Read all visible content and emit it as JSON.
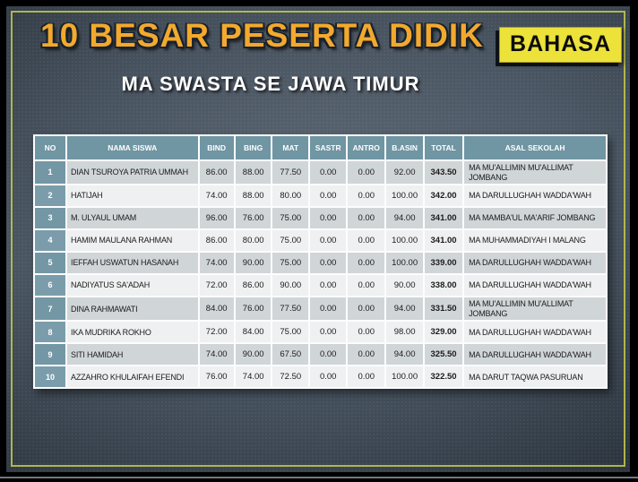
{
  "slide": {
    "title": "10 BESAR PESERTA DIDIK",
    "badge": "BAHASA",
    "subtitle": "MA SWASTA SE JAWA TIMUR"
  },
  "colors": {
    "title_gold": "#f2a92d",
    "badge_yellow": "#ece23a",
    "header_teal": "#7095a3",
    "rank_teal": "#7b9dab",
    "band_gray": "#d0d5d8",
    "band_light": "#eef0f1",
    "border_accent": "#bcc24e"
  },
  "table": {
    "columns": [
      "NO",
      "NAMA SISWA",
      "BIND",
      "BING",
      "MAT",
      "SASTR",
      "ANTRO",
      "B.ASIN",
      "TOTAL",
      "ASAL SEKOLAH"
    ],
    "rows": [
      {
        "no": "1",
        "nama": "DIAN TSUROYA PATRIA UMMAH",
        "bind": "86.00",
        "bing": "88.00",
        "mat": "77.50",
        "sastr": "0.00",
        "antro": "0.00",
        "basin": "92.00",
        "total": "343.50",
        "asal": "MA MU'ALLIMIN MU'ALLIMAT JOMBANG"
      },
      {
        "no": "2",
        "nama": "HATIJAH",
        "bind": "74.00",
        "bing": "88.00",
        "mat": "80.00",
        "sastr": "0.00",
        "antro": "0.00",
        "basin": "100.00",
        "total": "342.00",
        "asal": "MA DARULLUGHAH WADDA'WAH"
      },
      {
        "no": "3",
        "nama": "M. ULYAUL UMAM",
        "bind": "96.00",
        "bing": "76.00",
        "mat": "75.00",
        "sastr": "0.00",
        "antro": "0.00",
        "basin": "94.00",
        "total": "341.00",
        "asal": "MA MAMBA'UL MA'ARIF JOMBANG"
      },
      {
        "no": "4",
        "nama": "HAMIM MAULANA RAHMAN",
        "bind": "86.00",
        "bing": "80.00",
        "mat": "75.00",
        "sastr": "0.00",
        "antro": "0.00",
        "basin": "100.00",
        "total": "341.00",
        "asal": "MA MUHAMMADIYAH I MALANG"
      },
      {
        "no": "5",
        "nama": "IEFFAH USWATUN HASANAH",
        "bind": "74.00",
        "bing": "90.00",
        "mat": "75.00",
        "sastr": "0.00",
        "antro": "0.00",
        "basin": "100.00",
        "total": "339.00",
        "asal": "MA DARULLUGHAH WADDA'WAH"
      },
      {
        "no": "6",
        "nama": "NADIYATUS SA'ADAH",
        "bind": "72.00",
        "bing": "86.00",
        "mat": "90.00",
        "sastr": "0.00",
        "antro": "0.00",
        "basin": "90.00",
        "total": "338.00",
        "asal": "MA DARULLUGHAH WADDA'WAH"
      },
      {
        "no": "7",
        "nama": "DINA RAHMAWATI",
        "bind": "84.00",
        "bing": "76.00",
        "mat": "77.50",
        "sastr": "0.00",
        "antro": "0.00",
        "basin": "94.00",
        "total": "331.50",
        "asal": "MA MU'ALLIMIN MU'ALLIMAT JOMBANG"
      },
      {
        "no": "8",
        "nama": "IKA MUDRIKA ROKHO",
        "bind": "72.00",
        "bing": "84.00",
        "mat": "75.00",
        "sastr": "0.00",
        "antro": "0.00",
        "basin": "98.00",
        "total": "329.00",
        "asal": "MA DARULLUGHAH WADDA'WAH"
      },
      {
        "no": "9",
        "nama": "SITI HAMIDAH",
        "bind": "74.00",
        "bing": "90.00",
        "mat": "67.50",
        "sastr": "0.00",
        "antro": "0.00",
        "basin": "94.00",
        "total": "325.50",
        "asal": "MA DARULLUGHAH WADDA'WAH"
      },
      {
        "no": "10",
        "nama": "AZZAHRO KHULAIFAH EFENDI",
        "bind": "76.00",
        "bing": "74.00",
        "mat": "72.50",
        "sastr": "0.00",
        "antro": "0.00",
        "basin": "100.00",
        "total": "322.50",
        "asal": "MA DARUT TAQWA PASURUAN"
      }
    ]
  }
}
